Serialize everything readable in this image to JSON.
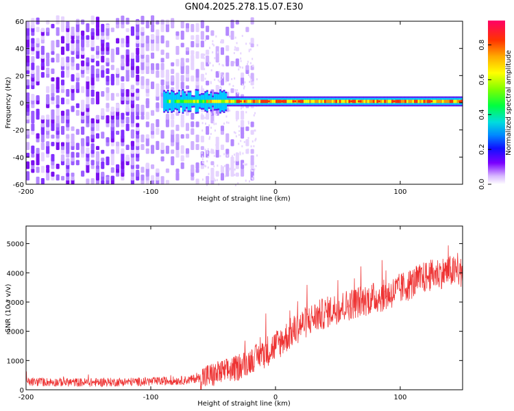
{
  "title": "GN04.2025.278.15.07.E30",
  "chart_data": [
    {
      "type": "heatmap",
      "xlabel": "Height of straight line (km)",
      "ylabel": "Frequency (Hz)",
      "xlim": [
        -200,
        150
      ],
      "ylim": [
        -60,
        60
      ],
      "xticks": [
        -200,
        -100,
        0,
        100
      ],
      "yticks": [
        -60,
        -40,
        -20,
        0,
        20,
        40,
        60
      ],
      "colorbar": {
        "label": "Normalized spectral amplitude",
        "range": [
          0.0,
          0.94
        ],
        "ticks": [
          0.0,
          0.2,
          0.4,
          0.6,
          0.8
        ]
      },
      "description_points": {
        "noise_region_x": [
          -200,
          -20
        ],
        "signal_band_x": [
          -90,
          150
        ],
        "signal_band_center_hz": 1
      }
    },
    {
      "type": "line",
      "xlabel": "Height of straight line (km)",
      "ylabel": "SNR (10 * v/v)",
      "xlim": [
        -200,
        150
      ],
      "ylim": [
        0,
        5600
      ],
      "xticks": [
        -200,
        -100,
        0,
        100
      ],
      "yticks": [
        0,
        1000,
        2000,
        3000,
        4000,
        5000
      ],
      "color": "#ee3333",
      "series": [
        {
          "x": [
            -200,
            -150,
            -100,
            -70,
            -50,
            -30,
            -20,
            -10,
            0,
            10,
            20,
            30,
            50,
            70,
            90,
            100,
            110,
            120,
            130,
            140,
            150
          ],
          "y": [
            270,
            250,
            280,
            330,
            500,
            750,
            1000,
            1250,
            1500,
            1850,
            2200,
            2450,
            2800,
            3050,
            3250,
            3450,
            3650,
            3850,
            3980,
            4050,
            4000
          ]
        }
      ]
    }
  ]
}
